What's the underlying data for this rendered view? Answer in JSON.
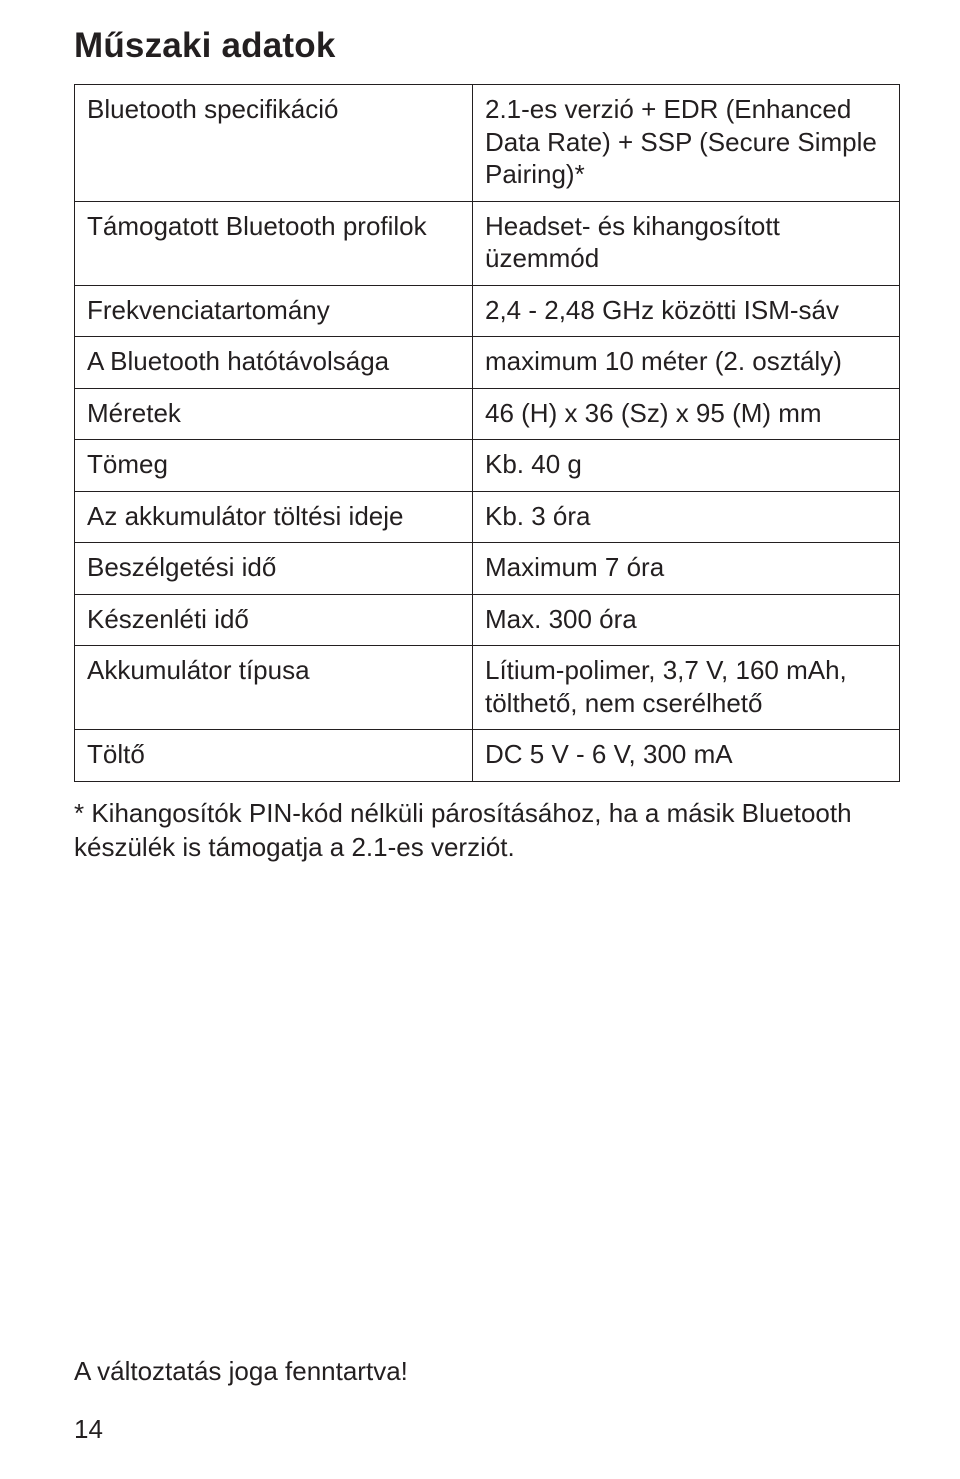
{
  "title": "Műszaki adatok",
  "table": {
    "rows": [
      {
        "label": "Bluetooth specifikáció",
        "value": "2.1-es verzió + EDR (Enhanced Data Rate) + SSP (Secure Simple Pairing)*"
      },
      {
        "label": "Támogatott Bluetooth profilok",
        "value": "Headset- és kihangosított üzemmód"
      },
      {
        "label": "Frekvenciatartomány",
        "value": "2,4 - 2,48 GHz közötti ISM-sáv"
      },
      {
        "label": "A Bluetooth hatótávolsága",
        "value": "maximum 10 méter (2. osztály)"
      },
      {
        "label": "Méretek",
        "value": "46 (H) x 36 (Sz) x 95 (M) mm"
      },
      {
        "label": "Tömeg",
        "value": "Kb. 40 g"
      },
      {
        "label": "Az akkumulátor töltési ideje",
        "value": "Kb. 3 óra"
      },
      {
        "label": "Beszélgetési idő",
        "value": "Maximum 7 óra"
      },
      {
        "label": "Készenléti idő",
        "value": "Max. 300 óra"
      },
      {
        "label": "Akkumulátor típusa",
        "value": "Lítium-polimer, 3,7 V, 160 mAh, tölthető, nem cserélhető"
      },
      {
        "label": "Töltő",
        "value": "DC 5 V - 6 V, 300 mA"
      }
    ],
    "border_color": "#231f20",
    "cell_fontsize": 26
  },
  "footnote": "* Kihangosítók PIN-kód nélküli párosításához, ha a másik Bluetooth készülék is támogatja a 2.1-es verziót.",
  "change_reserved": "A változtatás joga fenntartva!",
  "page_number": "14",
  "colors": {
    "text": "#231f20",
    "background": "#ffffff"
  },
  "typography": {
    "title_fontsize": 35,
    "title_weight": 700,
    "body_fontsize": 26
  }
}
